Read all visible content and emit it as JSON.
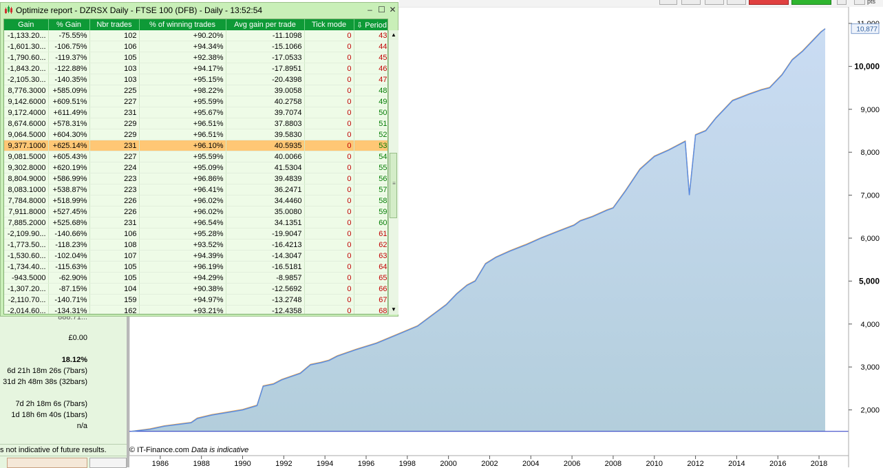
{
  "window": {
    "title": "Optimize report - DZRSX Daily - FTSE 100 (DFB) - Daily - 13:52:54",
    "minimize": "–",
    "maximize": "☐",
    "close": "✕"
  },
  "grid": {
    "columns": [
      "Gain",
      "% Gain",
      "Nbr trades",
      "% of winning trades",
      "Avg gain per trade",
      "Tick mode",
      "⇩ Period"
    ],
    "selected_row": 10,
    "rows": [
      [
        "-1,133.20...",
        "-75.55%",
        "102",
        "+90.20%",
        "-11.1098",
        "0",
        "43"
      ],
      [
        "-1,601.30...",
        "-106.75%",
        "106",
        "+94.34%",
        "-15.1066",
        "0",
        "44"
      ],
      [
        "-1,790.60...",
        "-119.37%",
        "105",
        "+92.38%",
        "-17.0533",
        "0",
        "45"
      ],
      [
        "-1,843.20...",
        "-122.88%",
        "103",
        "+94.17%",
        "-17.8951",
        "0",
        "46"
      ],
      [
        "-2,105.30...",
        "-140.35%",
        "103",
        "+95.15%",
        "-20.4398",
        "0",
        "47"
      ],
      [
        "8,776.3000",
        "+585.09%",
        "225",
        "+98.22%",
        "39.0058",
        "0",
        "48"
      ],
      [
        "9,142.6000",
        "+609.51%",
        "227",
        "+95.59%",
        "40.2758",
        "0",
        "49"
      ],
      [
        "9,172.4000",
        "+611.49%",
        "231",
        "+95.67%",
        "39.7074",
        "0",
        "50"
      ],
      [
        "8,674.6000",
        "+578.31%",
        "229",
        "+96.51%",
        "37.8803",
        "0",
        "51"
      ],
      [
        "9,064.5000",
        "+604.30%",
        "229",
        "+96.51%",
        "39.5830",
        "0",
        "52"
      ],
      [
        "9,377.1000",
        "+625.14%",
        "231",
        "+96.10%",
        "40.5935",
        "0",
        "53"
      ],
      [
        "9,081.5000",
        "+605.43%",
        "227",
        "+95.59%",
        "40.0066",
        "0",
        "54"
      ],
      [
        "9,302.8000",
        "+620.19%",
        "224",
        "+95.09%",
        "41.5304",
        "0",
        "55"
      ],
      [
        "8,804.9000",
        "+586.99%",
        "223",
        "+96.86%",
        "39.4839",
        "0",
        "56"
      ],
      [
        "8,083.1000",
        "+538.87%",
        "223",
        "+96.41%",
        "36.2471",
        "0",
        "57"
      ],
      [
        "7,784.8000",
        "+518.99%",
        "226",
        "+96.02%",
        "34.4460",
        "0",
        "58"
      ],
      [
        "7,911.8000",
        "+527.45%",
        "226",
        "+96.02%",
        "35.0080",
        "0",
        "59"
      ],
      [
        "7,885.2000",
        "+525.68%",
        "231",
        "+96.54%",
        "34.1351",
        "0",
        "60"
      ],
      [
        "-2,109.90...",
        "-140.66%",
        "106",
        "+95.28%",
        "-19.9047",
        "0",
        "61"
      ],
      [
        "-1,773.50...",
        "-118.23%",
        "108",
        "+93.52%",
        "-16.4213",
        "0",
        "62"
      ],
      [
        "-1,530.60...",
        "-102.04%",
        "107",
        "+94.39%",
        "-14.3047",
        "0",
        "63"
      ],
      [
        "-1,734.40...",
        "-115.63%",
        "105",
        "+96.19%",
        "-16.5181",
        "0",
        "64"
      ],
      [
        "-943.5000",
        "-62.90%",
        "105",
        "+94.29%",
        "-8.9857",
        "0",
        "65"
      ],
      [
        "-1,307.20...",
        "-87.15%",
        "104",
        "+90.38%",
        "-12.5692",
        "0",
        "66"
      ],
      [
        "-2,110.70...",
        "-140.71%",
        "159",
        "+94.97%",
        "-13.2748",
        "0",
        "67"
      ],
      [
        "-2,014.60...",
        "-134.31%",
        "162",
        "+93.21%",
        "-12.4358",
        "0",
        "68"
      ]
    ]
  },
  "stats": {
    "partial_value": "888.71...",
    "cash": "£0.00",
    "percent": "18.12%",
    "time1": "6d 21h 18m 26s (7bars)",
    "time2": "31d 2h 48m 38s (32bars)",
    "time3": "7d 2h 18m 6s (7bars)",
    "time4": "1d 18h 6m 40s (1bars)",
    "na": "n/a",
    "disclaimer": "s not indicative of future results."
  },
  "chart_data": {
    "type": "line",
    "title": "",
    "xlabel": "",
    "ylabel": "",
    "x_ticks": [
      "1986",
      "1988",
      "1990",
      "1992",
      "1994",
      "1996",
      "1998",
      "2000",
      "2002",
      "2004",
      "2006",
      "2008",
      "2010",
      "2012",
      "2014",
      "2016",
      "2018"
    ],
    "y_ticks": [
      "2,000",
      "3,000",
      "4,000",
      "5,000",
      "6,000",
      "7,000",
      "8,000",
      "9,000",
      "10,000",
      "11,000"
    ],
    "bold_y_ticks": [
      "5,000",
      "10,000"
    ],
    "ylim": [
      1000,
      11000
    ],
    "last_price_label": "10,877",
    "baseline_value": 1500,
    "x": [
      1984.6,
      1985.5,
      1986.2,
      1987.5,
      1987.8,
      1988.5,
      1990.0,
      1990.7,
      1991.0,
      1991.5,
      1991.9,
      1992.8,
      1993.3,
      1993.8,
      1994.2,
      1994.6,
      1995.5,
      1996.5,
      1997.5,
      1998.5,
      1999.2,
      1999.9,
      2000.4,
      2000.9,
      2001.3,
      2001.8,
      2002.3,
      2003.0,
      2003.8,
      2004.5,
      2005.3,
      2006.1,
      2006.4,
      2007.0,
      2007.7,
      2008.0,
      2008.6,
      2009.3,
      2010.0,
      2010.7,
      2011.5,
      2011.7,
      2012.0,
      2012.5,
      2013.0,
      2013.8,
      2014.6,
      2015.2,
      2015.6,
      2016.2,
      2016.7,
      2017.2,
      2017.8,
      2018.1,
      2018.3
    ],
    "series": [
      {
        "name": "",
        "color": "#5a8ee6",
        "values": [
          1500,
          1550,
          1620,
          1700,
          1800,
          1880,
          2000,
          2100,
          2550,
          2600,
          2700,
          2850,
          3050,
          3100,
          3150,
          3250,
          3400,
          3550,
          3750,
          3950,
          4200,
          4450,
          4700,
          4900,
          5000,
          5400,
          5550,
          5700,
          5850,
          6000,
          6150,
          6300,
          6400,
          6500,
          6650,
          6700,
          7100,
          7600,
          7900,
          8050,
          8250,
          7000,
          8400,
          8500,
          8800,
          9200,
          9350,
          9450,
          9500,
          9800,
          10150,
          10350,
          10650,
          10800,
          10877
        ]
      },
      {
        "name": "",
        "color": "#f5a030",
        "values": [
          1500,
          1560,
          1630,
          1710,
          1810,
          1890,
          2010,
          2110,
          2560,
          2610,
          2710,
          2860,
          3060,
          3110,
          3160,
          3260,
          3410,
          3560,
          3760,
          3960,
          4210,
          4460,
          4710,
          4910,
          5010,
          5410,
          5560,
          5710,
          5860,
          6010,
          6160,
          6310,
          6410,
          6510,
          6660,
          6710,
          7110,
          7610,
          7910,
          8060,
          8260,
          7010,
          8410,
          8510,
          8810,
          9210,
          9360,
          9460,
          9510,
          9810,
          10160,
          10360,
          10660,
          10810,
          10877
        ]
      }
    ],
    "fill_color": "#c5d9f0"
  },
  "footer": {
    "copyright": "© IT-Finance.com",
    "note": "Data is indicative"
  }
}
